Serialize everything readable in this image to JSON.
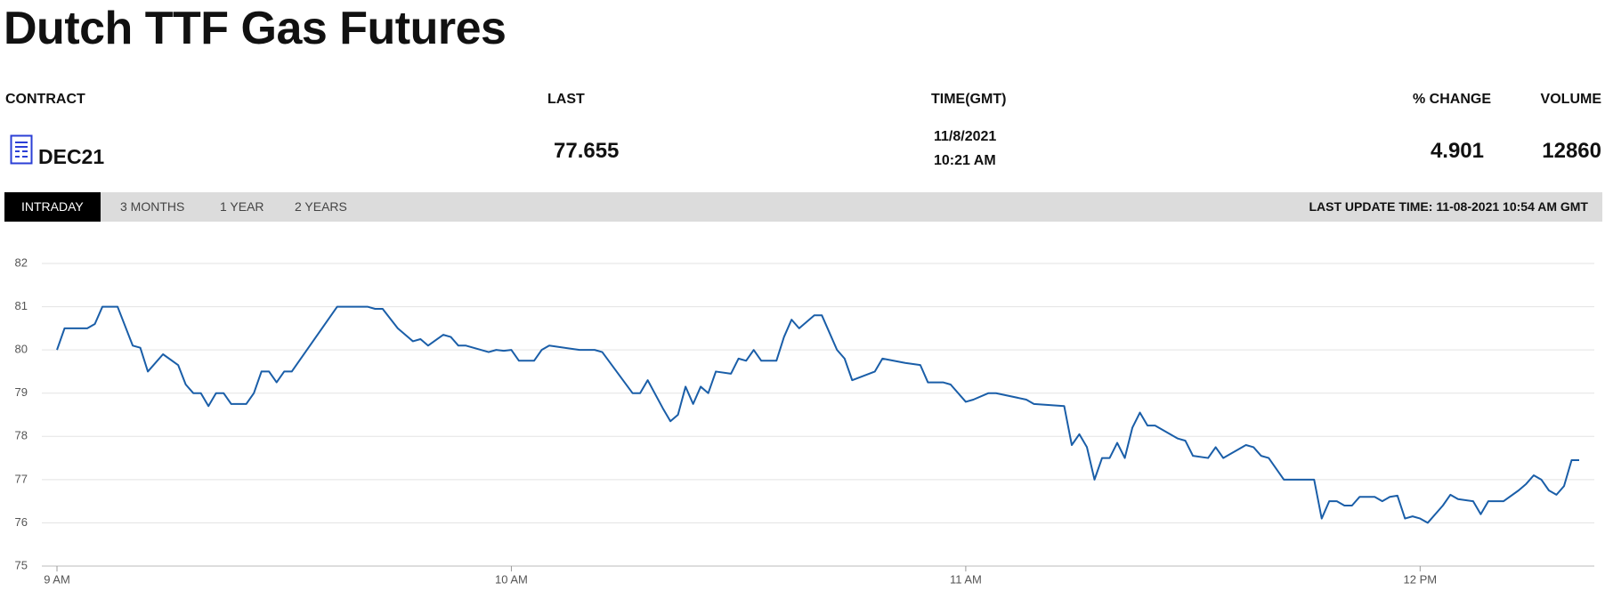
{
  "header": {
    "title": "Dutch TTF Gas Futures"
  },
  "table": {
    "columns": [
      "CONTRACT",
      "LAST",
      "TIME(GMT)",
      "% CHANGE",
      "VOLUME"
    ],
    "row": {
      "contract": "DEC21",
      "last": 77.655,
      "date": "11/8/2021",
      "time": "10:21 AM",
      "change": 4.901,
      "volume": 12860
    }
  },
  "tabs": [
    "INTRADAY",
    "3 MONTHS",
    "1 YEAR",
    "2 YEARS"
  ],
  "last_update": "LAST UPDATE TIME: 11-08-2021 10:54 AM GMT",
  "chart_data": {
    "type": "line",
    "color": "#1a5ea8",
    "grid": true,
    "x": [
      540,
      541,
      544,
      545,
      546,
      548,
      550,
      551,
      552,
      554,
      556,
      557,
      558,
      559,
      560,
      561,
      562,
      563,
      565,
      566,
      567,
      568,
      569,
      570,
      571,
      577,
      581,
      582,
      583,
      585,
      587,
      588,
      589,
      591,
      592,
      593,
      594,
      597,
      598,
      599,
      600,
      601,
      603,
      604,
      605,
      609,
      611,
      612,
      616,
      617,
      618,
      620,
      621,
      622,
      623,
      624,
      625,
      626,
      627,
      629,
      630,
      631,
      632,
      633,
      635,
      636,
      637,
      638,
      640,
      641,
      642,
      643,
      644,
      645,
      648,
      649,
      652,
      654,
      655,
      657,
      658,
      660,
      661,
      663,
      664,
      668,
      669,
      673,
      674,
      675,
      676,
      677,
      678,
      679,
      680,
      681,
      682,
      683,
      684,
      685,
      688,
      689,
      690,
      692,
      693,
      694,
      696,
      697,
      698,
      699,
      700,
      701,
      702,
      706,
      707,
      708,
      709,
      710,
      711,
      712,
      714,
      715,
      716,
      717,
      718,
      719,
      720,
      721,
      723,
      724,
      725,
      727,
      728,
      729,
      731,
      733,
      734,
      735,
      736,
      737,
      738,
      739,
      740,
      741
    ],
    "values": [
      80.0,
      80.5,
      80.5,
      80.6,
      81.0,
      81.0,
      80.1,
      80.05,
      79.5,
      79.9,
      79.65,
      79.2,
      79.0,
      79.0,
      78.7,
      79.0,
      79.0,
      78.75,
      78.75,
      79.0,
      79.5,
      79.5,
      79.25,
      79.5,
      79.5,
      81.0,
      81.0,
      80.95,
      80.95,
      80.5,
      80.2,
      80.25,
      80.1,
      80.35,
      80.3,
      80.1,
      80.1,
      79.95,
      80.0,
      79.98,
      80.0,
      79.75,
      79.75,
      80.0,
      80.1,
      80.0,
      80.0,
      79.95,
      79.0,
      79.0,
      79.3,
      78.65,
      78.35,
      78.5,
      79.15,
      78.75,
      79.15,
      79.0,
      79.5,
      79.45,
      79.8,
      79.75,
      80.0,
      79.75,
      79.75,
      80.3,
      80.7,
      80.5,
      80.8,
      80.8,
      80.4,
      80.0,
      79.8,
      79.3,
      79.5,
      79.8,
      79.7,
      79.65,
      79.25,
      79.25,
      79.2,
      78.8,
      78.85,
      79.0,
      79.0,
      78.85,
      78.75,
      78.7,
      77.8,
      78.05,
      77.75,
      77.0,
      77.5,
      77.5,
      77.85,
      77.5,
      78.2,
      78.55,
      78.25,
      78.25,
      77.95,
      77.9,
      77.55,
      77.5,
      77.75,
      77.5,
      77.7,
      77.8,
      77.75,
      77.55,
      77.5,
      77.25,
      77.0,
      77.0,
      76.1,
      76.5,
      76.5,
      76.4,
      76.4,
      76.6,
      76.6,
      76.5,
      76.6,
      76.63,
      76.1,
      76.15,
      76.1,
      76.0,
      76.4,
      76.65,
      76.55,
      76.5,
      76.2,
      76.5,
      76.5,
      76.75,
      76.9,
      77.1,
      77.0,
      76.75,
      76.65,
      76.85,
      77.45,
      77.45
    ],
    "xlim": [
      538,
      743
    ],
    "xticks": [
      {
        "value": 540,
        "label": "9 AM"
      },
      {
        "value": 600,
        "label": "10 AM"
      },
      {
        "value": 660,
        "label": "11 AM"
      },
      {
        "value": 720,
        "label": "12 PM"
      }
    ],
    "ylim": [
      75,
      82
    ],
    "yticks": [
      75,
      76,
      77,
      78,
      79,
      80,
      81,
      82
    ]
  }
}
